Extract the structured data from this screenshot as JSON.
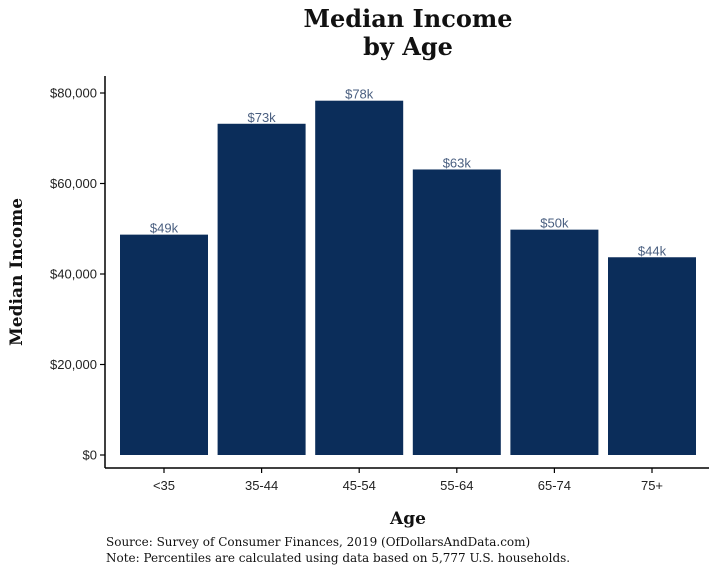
{
  "chart_data": {
    "type": "bar",
    "title": [
      "Median Income",
      "by Age"
    ],
    "xlabel": "Age",
    "ylabel": "Median Income",
    "categories": [
      "<35",
      "35-44",
      "45-54",
      "55-64",
      "65-74",
      "75+"
    ],
    "values": [
      48700,
      73200,
      78300,
      63100,
      49800,
      43700
    ],
    "data_labels": [
      "$49k",
      "$73k",
      "$78k",
      "$63k",
      "$50k",
      "$44k"
    ],
    "ylim": [
      0,
      80000
    ],
    "yticks": [
      0,
      20000,
      40000,
      60000,
      80000
    ],
    "ytick_labels": [
      "$0",
      "$20,000",
      "$40,000",
      "$60,000",
      "$80,000"
    ],
    "grid": false,
    "legend": "none",
    "colors": {
      "bar": "#0b2d5a",
      "label": "#4a5f80",
      "axis": "#000000"
    },
    "notes": [
      "Source:  Survey of Consumer Finances, 2019 (OfDollarsAndData.com)",
      "Note: Percentiles are calculated using data based on 5,777 U.S. households."
    ]
  }
}
